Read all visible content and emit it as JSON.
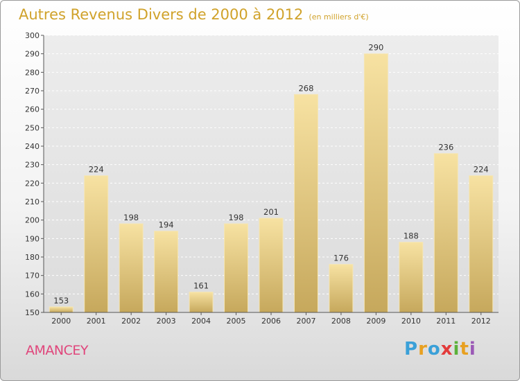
{
  "title": "Autres Revenus Divers de 2000 à 2012",
  "unit": "(en milliers d'€)",
  "commune": "AMANCEY",
  "logo": {
    "text": "Proxiti",
    "letters": [
      "P",
      "r",
      "o",
      "x",
      "i",
      "t",
      "i"
    ],
    "letter_colors": [
      "#3aa0d8",
      "#e8a020",
      "#3aa0d8",
      "#e33b3b",
      "#5bb13a",
      "#e8a020",
      "#9b59b6"
    ]
  },
  "chart_data": {
    "type": "bar",
    "categories": [
      "2000",
      "2001",
      "2002",
      "2003",
      "2004",
      "2005",
      "2006",
      "2007",
      "2008",
      "2009",
      "2010",
      "2011",
      "2012"
    ],
    "values": [
      153,
      224,
      198,
      194,
      161,
      198,
      201,
      268,
      176,
      290,
      188,
      236,
      224
    ],
    "ylim": [
      150,
      300
    ],
    "yticks": [
      150,
      160,
      170,
      180,
      190,
      200,
      210,
      220,
      230,
      240,
      250,
      260,
      270,
      280,
      290,
      300
    ],
    "grid": true,
    "bar_color": "#d8bd72"
  }
}
